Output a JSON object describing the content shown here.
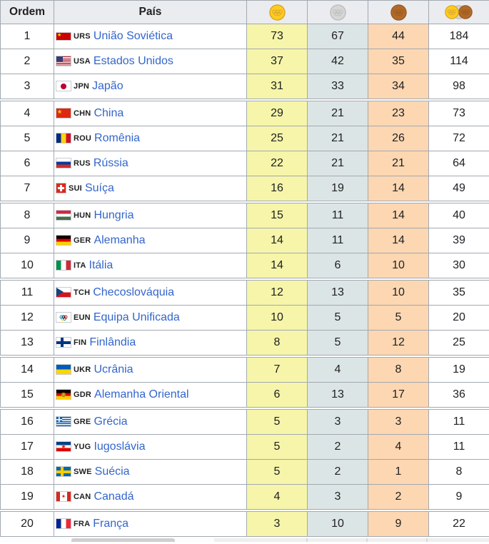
{
  "table": {
    "headers": {
      "ordem": "Ordem",
      "pais": "País"
    },
    "colors": {
      "link_blue": "#3366cc",
      "gold_column_bg": "#f6f5a9",
      "silver_column_bg": "#dce5e5",
      "bronze_column_bg": "#fcd7b2",
      "header_bg": "#eaecf0",
      "border": "#a2a9b1"
    },
    "medal_icons": {
      "gold": {
        "fill": "#fccd1e",
        "stroke": "#dfa224",
        "ring": "#e2ab2e"
      },
      "silver": {
        "fill": "#d6d6d6",
        "stroke": "#bdbdbd",
        "ring": "#c2c2c2"
      },
      "bronze": {
        "fill": "#b26a2b",
        "stroke": "#9a5b20",
        "ring": "#9e5e1f"
      }
    },
    "rows": [
      {
        "ordem": "1",
        "flag": "urs",
        "code": "URS",
        "country": "União Soviética",
        "gold": 73,
        "silver": 67,
        "bronze": 44,
        "total": 184,
        "group_start": false
      },
      {
        "ordem": "2",
        "flag": "usa",
        "code": "USA",
        "country": "Estados Unidos",
        "gold": 37,
        "silver": 42,
        "bronze": 35,
        "total": 114,
        "group_start": false
      },
      {
        "ordem": "3",
        "flag": "jpn",
        "code": "JPN",
        "country": "Japão",
        "gold": 31,
        "silver": 33,
        "bronze": 34,
        "total": 98,
        "group_start": false
      },
      {
        "ordem": "4",
        "flag": "chn",
        "code": "CHN",
        "country": "China",
        "gold": 29,
        "silver": 21,
        "bronze": 23,
        "total": 73,
        "group_start": true
      },
      {
        "ordem": "5",
        "flag": "rou",
        "code": "ROU",
        "country": "Romênia",
        "gold": 25,
        "silver": 21,
        "bronze": 26,
        "total": 72,
        "group_start": false
      },
      {
        "ordem": "6",
        "flag": "rus",
        "code": "RUS",
        "country": "Rússia",
        "gold": 22,
        "silver": 21,
        "bronze": 21,
        "total": 64,
        "group_start": false
      },
      {
        "ordem": "7",
        "flag": "sui",
        "code": "SUI",
        "country": "Suíça",
        "gold": 16,
        "silver": 19,
        "bronze": 14,
        "total": 49,
        "group_start": false
      },
      {
        "ordem": "8",
        "flag": "hun",
        "code": "HUN",
        "country": "Hungria",
        "gold": 15,
        "silver": 11,
        "bronze": 14,
        "total": 40,
        "group_start": true
      },
      {
        "ordem": "9",
        "flag": "ger",
        "code": "GER",
        "country": "Alemanha",
        "gold": 14,
        "silver": 11,
        "bronze": 14,
        "total": 39,
        "group_start": false
      },
      {
        "ordem": "10",
        "flag": "ita",
        "code": "ITA",
        "country": "Itália",
        "gold": 14,
        "silver": 6,
        "bronze": 10,
        "total": 30,
        "group_start": false
      },
      {
        "ordem": "11",
        "flag": "tch",
        "code": "TCH",
        "country": "Checoslováquia",
        "gold": 12,
        "silver": 13,
        "bronze": 10,
        "total": 35,
        "group_start": true
      },
      {
        "ordem": "12",
        "flag": "eun",
        "code": "EUN",
        "country": "Equipa Unificada",
        "gold": 10,
        "silver": 5,
        "bronze": 5,
        "total": 20,
        "group_start": false
      },
      {
        "ordem": "13",
        "flag": "fin",
        "code": "FIN",
        "country": "Finlândia",
        "gold": 8,
        "silver": 5,
        "bronze": 12,
        "total": 25,
        "group_start": false
      },
      {
        "ordem": "14",
        "flag": "ukr",
        "code": "UKR",
        "country": "Ucrânia",
        "gold": 7,
        "silver": 4,
        "bronze": 8,
        "total": 19,
        "group_start": true
      },
      {
        "ordem": "15",
        "flag": "gdr",
        "code": "GDR",
        "country": "Alemanha Oriental",
        "gold": 6,
        "silver": 13,
        "bronze": 17,
        "total": 36,
        "group_start": false
      },
      {
        "ordem": "16",
        "flag": "gre",
        "code": "GRE",
        "country": "Grécia",
        "gold": 5,
        "silver": 3,
        "bronze": 3,
        "total": 11,
        "group_start": true
      },
      {
        "ordem": "17",
        "flag": "yug",
        "code": "YUG",
        "country": "Iugoslávia",
        "gold": 5,
        "silver": 2,
        "bronze": 4,
        "total": 11,
        "group_start": false
      },
      {
        "ordem": "18",
        "flag": "swe",
        "code": "SWE",
        "country": "Suécia",
        "gold": 5,
        "silver": 2,
        "bronze": 1,
        "total": 8,
        "group_start": false
      },
      {
        "ordem": "19",
        "flag": "can",
        "code": "CAN",
        "country": "Canadá",
        "gold": 4,
        "silver": 3,
        "bronze": 2,
        "total": 9,
        "group_start": false
      },
      {
        "ordem": "20",
        "flag": "fra",
        "code": "FRA",
        "country": "França",
        "gold": 3,
        "silver": 10,
        "bronze": 9,
        "total": 22,
        "group_start": true
      }
    ]
  }
}
